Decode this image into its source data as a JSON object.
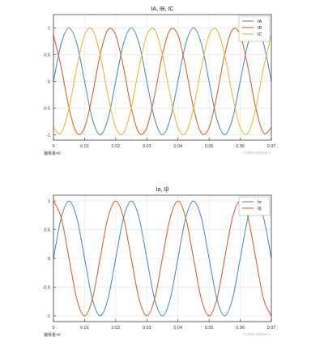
{
  "chart_data": [
    {
      "type": "line",
      "title": "IA, IB, IC",
      "xlim": [
        0,
        0.07
      ],
      "ylim": [
        -1.1,
        1.25
      ],
      "xticks": [
        0,
        0.01,
        0.02,
        0.03,
        0.04,
        0.05,
        0.06,
        0.07
      ],
      "xtick_labels": [
        "0",
        "0.01",
        "0.02",
        "0.03",
        "0.04",
        "0.05",
        "0.06",
        "0.07"
      ],
      "yticks": [
        -1,
        -0.5,
        0,
        0.5,
        1
      ],
      "ytick_labels": [
        "-1",
        "-0.5",
        "0",
        "0.5",
        "1"
      ],
      "grid": true,
      "legend": "top-right",
      "offset_label": "偏移量=0",
      "watermark": "CSDN @Dave L",
      "x": [
        0,
        0.0025,
        0.005,
        0.0075,
        0.01,
        0.0125,
        0.015,
        0.0175,
        0.02,
        0.0225,
        0.025,
        0.0275,
        0.03,
        0.0325,
        0.035,
        0.0375,
        0.04,
        0.0425,
        0.045,
        0.0475,
        0.05,
        0.0525,
        0.055,
        0.0575,
        0.06,
        0.0625,
        0.065,
        0.0675,
        0.07
      ],
      "series": [
        {
          "name": "IA",
          "color": "#4f8fc9",
          "values": [
            0,
            0.707,
            1,
            0.707,
            0,
            -0.707,
            -1,
            -0.707,
            0,
            0.707,
            1,
            0.707,
            0,
            -0.707,
            -1,
            -0.707,
            0,
            0.707,
            1,
            0.707,
            0,
            -0.707,
            -1,
            -0.707,
            0,
            0.707,
            1,
            0.707,
            0
          ]
        },
        {
          "name": "IB",
          "color": "#d8662f",
          "values": [
            0.866,
            0.259,
            -0.5,
            -0.966,
            -0.866,
            -0.259,
            0.5,
            0.966,
            0.866,
            0.259,
            -0.5,
            -0.966,
            -0.866,
            -0.259,
            0.5,
            0.966,
            0.866,
            0.259,
            -0.5,
            -0.966,
            -0.866,
            -0.259,
            0.5,
            0.966,
            0.866,
            0.259,
            -0.5,
            -0.966,
            -0.866
          ]
        },
        {
          "name": "IC",
          "color": "#e8bb3a",
          "values": [
            -0.866,
            -0.966,
            -0.5,
            0.259,
            0.866,
            0.966,
            0.5,
            -0.259,
            -0.866,
            -0.966,
            -0.5,
            0.259,
            0.866,
            0.966,
            0.5,
            -0.259,
            -0.866,
            -0.966,
            -0.5,
            0.259,
            0.866,
            0.966,
            0.5,
            -0.259,
            -0.866,
            -0.966,
            -0.5,
            0.259,
            0.866
          ]
        }
      ]
    },
    {
      "type": "line",
      "title": "Iα, Iβ",
      "xlim": [
        0,
        0.07
      ],
      "ylim": [
        -1.1,
        1.1
      ],
      "xticks": [
        0,
        0.01,
        0.02,
        0.03,
        0.04,
        0.05,
        0.06,
        0.07
      ],
      "xtick_labels": [
        "0",
        "0.01",
        "0.02",
        "0.03",
        "0.04",
        "0.05",
        "0.06",
        "0.07"
      ],
      "yticks": [
        -1,
        -0.5,
        0,
        0.5,
        1
      ],
      "ytick_labels": [
        "-1",
        "-0.5",
        "0",
        "0.5",
        "1"
      ],
      "grid": true,
      "legend": "top-right",
      "offset_label": "偏移量=0",
      "watermark": "CSDN @Dave L",
      "x": [
        0,
        0.0025,
        0.005,
        0.0075,
        0.01,
        0.0125,
        0.015,
        0.0175,
        0.02,
        0.0225,
        0.025,
        0.0275,
        0.03,
        0.0325,
        0.035,
        0.0375,
        0.04,
        0.0425,
        0.045,
        0.0475,
        0.05,
        0.0525,
        0.055,
        0.0575,
        0.06,
        0.0625,
        0.065,
        0.0675,
        0.07
      ],
      "series": [
        {
          "name": "Iα",
          "color": "#4f8fc9",
          "values": [
            0,
            0.707,
            1,
            0.707,
            0,
            -0.707,
            -1,
            -0.707,
            0,
            0.707,
            1,
            0.707,
            0,
            -0.707,
            -1,
            -0.707,
            0,
            0.707,
            1,
            0.707,
            0,
            -0.707,
            -1,
            -0.707,
            0,
            0.707,
            1,
            0.707,
            0
          ]
        },
        {
          "name": "Iβ",
          "color": "#d8662f",
          "values": [
            1,
            0.707,
            0,
            -0.707,
            -1,
            -0.707,
            0,
            0.707,
            1,
            0.707,
            0,
            -0.707,
            -1,
            -0.707,
            0,
            0.707,
            1,
            0.707,
            0,
            -0.707,
            -1,
            -0.707,
            0,
            0.707,
            1,
            0.707,
            0,
            -0.707,
            -1
          ]
        }
      ]
    }
  ]
}
